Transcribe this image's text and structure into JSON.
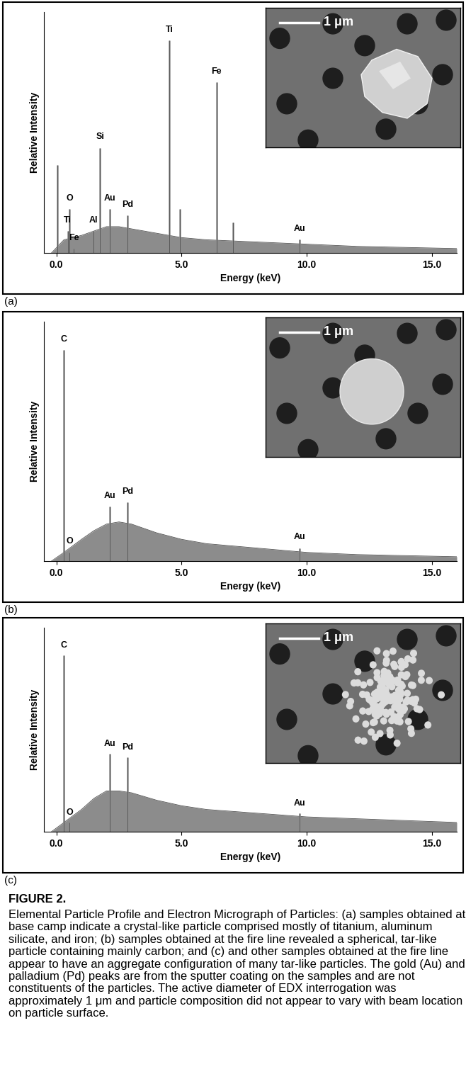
{
  "chart_data": [
    {
      "type": "spectrum",
      "panel": "(a)",
      "x_label": "Energy (keV)",
      "y_label": "Relative Intensity",
      "xlim": [
        -0.5,
        16
      ],
      "ylim": [
        0,
        110
      ],
      "xticks": [
        {
          "value": 0,
          "label": "0.0"
        },
        {
          "value": 5,
          "label": "5.0"
        },
        {
          "value": 10,
          "label": "10.0"
        },
        {
          "value": 15,
          "label": "15.0"
        }
      ],
      "tick_labels": "x",
      "color": "#8c8c8c",
      "background": {
        "x": [
          -0.2,
          0.3,
          1.0,
          1.5,
          2.0,
          2.5,
          3.0,
          3.5,
          4.0,
          5.0,
          6.0,
          8.0,
          10.0,
          12.0,
          14.0,
          16.0
        ],
        "values": [
          0,
          6,
          8,
          10,
          12,
          12,
          11,
          10,
          9,
          7,
          6,
          5,
          4,
          3,
          2.5,
          2
        ]
      },
      "peaks": [
        {
          "x": 0.05,
          "value": 40
        },
        {
          "x": 0.52,
          "value": 20,
          "label": "O"
        },
        {
          "x": 0.45,
          "value": 10,
          "label": "Ti"
        },
        {
          "x": 0.7,
          "value": 2,
          "label": "Fe"
        },
        {
          "x": 1.49,
          "value": 10,
          "label": "Al"
        },
        {
          "x": 1.74,
          "value": 48,
          "label": "Si"
        },
        {
          "x": 2.12,
          "value": 20,
          "label": "Au"
        },
        {
          "x": 2.84,
          "value": 17,
          "label": "Pd"
        },
        {
          "x": 4.51,
          "value": 97,
          "label": "Ti"
        },
        {
          "x": 4.93,
          "value": 20
        },
        {
          "x": 6.4,
          "value": 78,
          "label": "Fe"
        },
        {
          "x": 7.06,
          "value": 14
        },
        {
          "x": 9.71,
          "value": 6,
          "label": "Au"
        }
      ],
      "inset": {
        "scale_bar": "1 μm"
      }
    },
    {
      "type": "spectrum",
      "panel": "(b)",
      "x_label": "Energy (keV)",
      "y_label": "Relative Intensity",
      "xlim": [
        -0.5,
        16
      ],
      "ylim": [
        0,
        110
      ],
      "xticks": [
        {
          "value": 0,
          "label": "0.0"
        },
        {
          "value": 5,
          "label": "5.0"
        },
        {
          "value": 10,
          "label": "10.0"
        },
        {
          "value": 15,
          "label": "15.0"
        }
      ],
      "tick_labels": "x",
      "color": "#8c8c8c",
      "background": {
        "x": [
          -0.2,
          0.3,
          1.0,
          1.5,
          2.0,
          2.5,
          3.0,
          3.5,
          4.0,
          5.0,
          6.0,
          8.0,
          10.0,
          12.0,
          14.0,
          16.0
        ],
        "values": [
          0,
          4,
          10,
          14,
          17,
          18,
          17,
          15,
          13,
          10,
          8,
          6,
          4,
          3,
          2.5,
          2
        ]
      },
      "peaks": [
        {
          "x": 0.28,
          "value": 97,
          "label": "C"
        },
        {
          "x": 0.52,
          "value": 4,
          "label": "O"
        },
        {
          "x": 2.12,
          "value": 25,
          "label": "Au"
        },
        {
          "x": 2.84,
          "value": 27,
          "label": "Pd"
        },
        {
          "x": 9.71,
          "value": 6,
          "label": "Au"
        }
      ],
      "inset": {
        "scale_bar": "1 μm"
      }
    },
    {
      "type": "spectrum",
      "panel": "(c)",
      "x_label": "Energy (keV)",
      "y_label": "Relative Intensity",
      "xlim": [
        -0.5,
        16
      ],
      "ylim": [
        0,
        110
      ],
      "xticks": [
        {
          "value": 0,
          "label": "0.0"
        },
        {
          "value": 5,
          "label": "5.0"
        },
        {
          "value": 10,
          "label": "10.0"
        },
        {
          "value": 15,
          "label": "15.0"
        }
      ],
      "tick_labels": "x",
      "color": "#8c8c8c",
      "background": {
        "x": [
          -0.2,
          0.3,
          1.0,
          1.5,
          2.0,
          2.5,
          3.0,
          3.5,
          4.0,
          5.0,
          6.0,
          8.0,
          10.0,
          12.0,
          14.0,
          16.0
        ],
        "values": [
          0,
          5,
          12,
          18,
          22,
          22,
          21,
          19,
          17,
          14,
          12,
          10,
          8,
          7,
          6,
          5
        ]
      },
      "peaks": [
        {
          "x": 0.28,
          "value": 95,
          "label": "C"
        },
        {
          "x": 0.52,
          "value": 5,
          "label": "O"
        },
        {
          "x": 2.12,
          "value": 42,
          "label": "Au"
        },
        {
          "x": 2.84,
          "value": 40,
          "label": "Pd"
        },
        {
          "x": 9.71,
          "value": 10,
          "label": "Au"
        }
      ],
      "inset": {
        "scale_bar": "1 μm"
      }
    }
  ],
  "caption": {
    "label": "FIGURE 2.",
    "text": "Elemental Particle Profile and Electron Micrograph of Particles: (a) samples obtained at base camp indicate a crystal-like particle comprised mostly of titanium, aluminum silicate, and iron; (b) samples obtained at the fire line revealed a spherical, tar-like particle containing mainly carbon; and (c) and other samples obtained at the fire line appear to have an aggregate configuration of many tar-like particles. The gold (Au) and palladium (Pd) peaks are from the sputter coating on the samples and are not constituents of the particles. The active diameter of EDX interrogation was approximately 1 μm and particle composition did not appear to vary with beam location on particle surface."
  }
}
